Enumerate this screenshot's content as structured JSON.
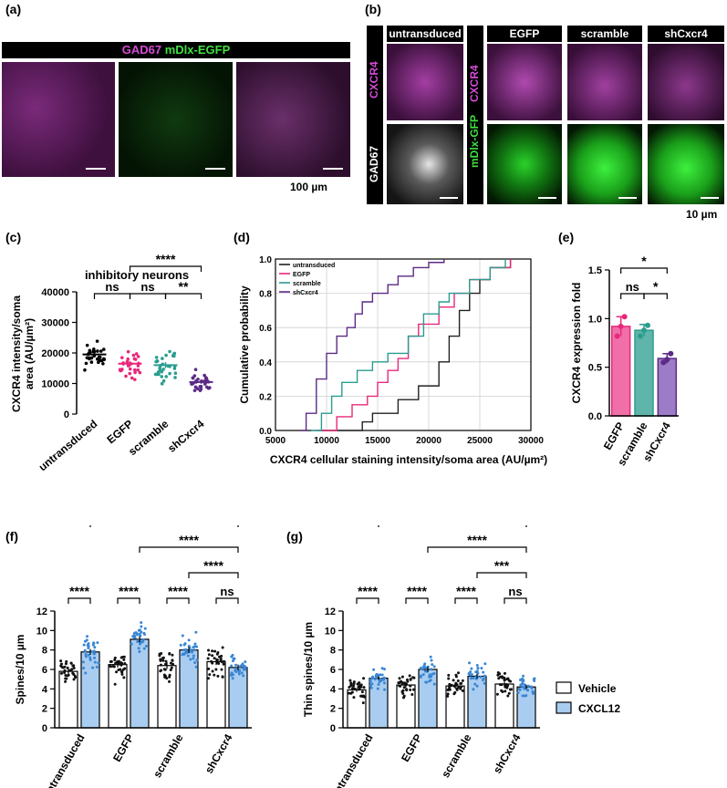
{
  "panels": {
    "a": {
      "label": "(a)",
      "header": {
        "marker": "GAD67",
        "reporter": "mDlx-EGFP"
      },
      "scale": "100 µm",
      "colors": {
        "magenta": "#b63bb6",
        "green": "#22c522"
      }
    },
    "b": {
      "label": "(b)",
      "columns": [
        "untransduced",
        "EGFP",
        "scramble",
        "shCxcr4"
      ],
      "left_rows": {
        "top": "CXCR4",
        "bottom": "GAD67"
      },
      "right_rows": {
        "top": "CXCR4",
        "bottom": "mDlx-GFP"
      },
      "scale": "10 µm"
    },
    "c": {
      "label": "(c)",
      "title": "inhibitory neurons"
    },
    "d": {
      "label": "(d)"
    },
    "e": {
      "label": "(e)"
    },
    "f": {
      "label": "(f)"
    },
    "g": {
      "label": "(g)"
    }
  },
  "chart_data": [
    {
      "id": "c",
      "type": "scatter",
      "title": "inhibitory neurons",
      "ylabel": "CXCR4 intensity/soma area (AU/µm²)",
      "ylabel_lines": [
        "CXCR4 intensity/soma",
        "area (AU/µm²)"
      ],
      "ylim": [
        0,
        40000
      ],
      "yticks": [
        "0",
        "10000",
        "20000",
        "30000",
        "40000"
      ],
      "categories": [
        "untransduced",
        "EGFP",
        "scramble",
        "shCxcr4"
      ],
      "colors": [
        "#000000",
        "#e8287a",
        "#2a9d8f",
        "#5b2a86"
      ],
      "means": [
        19500,
        16500,
        16000,
        10500
      ],
      "sem": [
        900,
        900,
        1000,
        600
      ],
      "n_points": [
        30,
        30,
        34,
        32
      ],
      "spread": [
        4200,
        4800,
        5400,
        3400
      ],
      "annotations": [
        {
          "from": 0,
          "to": 1,
          "text": "ns",
          "level": 1
        },
        {
          "from": 1,
          "to": 2,
          "text": "ns",
          "level": 1
        },
        {
          "from": 2,
          "to": 3,
          "text": "**",
          "level": 1
        },
        {
          "from": 1,
          "to": 3,
          "text": "****",
          "level": 2
        }
      ]
    },
    {
      "id": "d",
      "type": "line",
      "xlabel": "CXCR4 cellular staining intensity/soma area (AU/µm²)",
      "ylabel": "Cumulative probability",
      "xlim": [
        5000,
        30000
      ],
      "ylim": [
        0,
        1.0
      ],
      "xticks": [
        "5000",
        "10000",
        "15000",
        "20000",
        "25000",
        "30000"
      ],
      "yticks": [
        "0.0",
        "0.2",
        "0.4",
        "0.6",
        "0.8",
        "1.0"
      ],
      "grid": true,
      "legend": "top-left",
      "series": [
        {
          "name": "untransduced",
          "color": "#222222",
          "x": [
            9500,
            13500,
            14500,
            17000,
            19000,
            21000,
            22000,
            23000,
            24000,
            25000,
            26000,
            28000
          ],
          "y": [
            0.0,
            0.05,
            0.1,
            0.18,
            0.26,
            0.4,
            0.55,
            0.7,
            0.8,
            0.88,
            0.95,
            1.0
          ]
        },
        {
          "name": "EGFP",
          "color": "#e8287a",
          "x": [
            9000,
            11000,
            12500,
            14000,
            15000,
            16000,
            17000,
            18000,
            19000,
            21000,
            22500,
            24000,
            26000,
            28000
          ],
          "y": [
            0.0,
            0.08,
            0.15,
            0.2,
            0.28,
            0.35,
            0.42,
            0.55,
            0.62,
            0.72,
            0.8,
            0.88,
            0.95,
            1.0
          ]
        },
        {
          "name": "scramble",
          "color": "#2a9d8f",
          "x": [
            8500,
            9500,
            10500,
            11500,
            13000,
            14500,
            16000,
            18000,
            19500,
            21000,
            22000,
            24000,
            26000,
            27500
          ],
          "y": [
            0.0,
            0.1,
            0.2,
            0.28,
            0.35,
            0.4,
            0.45,
            0.55,
            0.68,
            0.75,
            0.8,
            0.88,
            0.95,
            1.0
          ]
        },
        {
          "name": "shCxcr4",
          "color": "#5b2a86",
          "x": [
            7500,
            8000,
            9000,
            10000,
            11000,
            12000,
            12800,
            13500,
            14500,
            16000,
            17000,
            18500,
            20000,
            21500
          ],
          "y": [
            0.0,
            0.1,
            0.3,
            0.45,
            0.55,
            0.6,
            0.68,
            0.75,
            0.8,
            0.85,
            0.9,
            0.95,
            0.98,
            1.0
          ]
        }
      ]
    },
    {
      "id": "e",
      "type": "bar",
      "ylabel": "CXCR4 expression fold",
      "ylim": [
        0,
        1.5
      ],
      "yticks": [
        "0.0",
        "0.5",
        "1.0",
        "1.5"
      ],
      "categories": [
        "EGFP",
        "scramble",
        "shCxcr4"
      ],
      "values": [
        0.92,
        0.88,
        0.59
      ],
      "errors": [
        0.1,
        0.06,
        0.05
      ],
      "points": [
        [
          0.82,
          0.92,
          1.02
        ],
        [
          0.82,
          0.88,
          0.93
        ],
        [
          0.55,
          0.58,
          0.64
        ]
      ],
      "colors": [
        "#f06fa8",
        "#5fb5a9",
        "#9c7cc6"
      ],
      "edge_colors": [
        "#e8287a",
        "#2a9d8f",
        "#5b2a86"
      ],
      "annotations": [
        {
          "from": 0,
          "to": 1,
          "text": "ns",
          "level": 1
        },
        {
          "from": 1,
          "to": 2,
          "text": "*",
          "level": 1
        },
        {
          "from": 0,
          "to": 2,
          "text": "*",
          "level": 2
        }
      ]
    },
    {
      "id": "f",
      "type": "bar",
      "ylabel": "Spines/10 µm",
      "ylim": [
        0,
        12
      ],
      "yticks": [
        "0",
        "2",
        "4",
        "6",
        "8",
        "10",
        "12"
      ],
      "categories": [
        "untransduced",
        "EGFP",
        "scramble",
        "shCxcr4"
      ],
      "series": [
        {
          "name": "Vehicle",
          "color": "#ffffff",
          "dots": "#111111",
          "values": [
            5.8,
            6.5,
            6.4,
            6.8
          ],
          "sem": [
            0.25,
            0.3,
            0.35,
            0.35
          ],
          "spread": [
            1.3,
            1.4,
            1.9,
            1.8
          ]
        },
        {
          "name": "CXCL12",
          "color": "#a9cdf0",
          "dots": "#3a86d4",
          "values": [
            7.8,
            9.1,
            8.0,
            6.2
          ],
          "sem": [
            0.3,
            0.3,
            0.3,
            0.3
          ],
          "spread": [
            1.6,
            1.5,
            1.6,
            1.4
          ]
        }
      ],
      "annotations": [
        {
          "from": 0,
          "to": 1,
          "text": "****",
          "kind": "pair",
          "cat": 0
        },
        {
          "from": 0,
          "to": 1,
          "text": "****",
          "kind": "pair",
          "cat": 1
        },
        {
          "from": 0,
          "to": 1,
          "text": "****",
          "kind": "pair",
          "cat": 2
        },
        {
          "from": 0,
          "to": 1,
          "text": "ns",
          "kind": "pair",
          "cat": 3
        },
        {
          "from": 2,
          "to": 3,
          "text": "****",
          "kind": "between",
          "level": 1
        },
        {
          "from": 1,
          "to": 3,
          "text": "****",
          "kind": "between",
          "level": 2
        },
        {
          "from": 0,
          "to": 3,
          "text": "****",
          "kind": "between",
          "level": 3
        }
      ]
    },
    {
      "id": "g",
      "type": "bar",
      "ylabel": "Thin spines/10 µm",
      "ylim": [
        0,
        12
      ],
      "yticks": [
        "0",
        "2",
        "4",
        "6",
        "8",
        "10",
        "12"
      ],
      "categories": [
        "untransduced",
        "EGFP",
        "scramble",
        "shCxcr4"
      ],
      "legend": "right",
      "series": [
        {
          "name": "Vehicle",
          "color": "#ffffff",
          "dots": "#111111",
          "values": [
            3.9,
            4.4,
            4.3,
            4.5
          ],
          "sem": [
            0.2,
            0.25,
            0.25,
            0.25
          ],
          "spread": [
            1.1,
            1.3,
            1.4,
            1.3
          ]
        },
        {
          "name": "CXCL12",
          "color": "#a9cdf0",
          "dots": "#3a86d4",
          "values": [
            5.1,
            6.0,
            5.3,
            4.2
          ],
          "sem": [
            0.2,
            0.25,
            0.25,
            0.2
          ],
          "spread": [
            1.0,
            1.4,
            1.3,
            1.1
          ]
        }
      ],
      "annotations": [
        {
          "from": 0,
          "to": 1,
          "text": "****",
          "kind": "pair",
          "cat": 0
        },
        {
          "from": 0,
          "to": 1,
          "text": "****",
          "kind": "pair",
          "cat": 1
        },
        {
          "from": 0,
          "to": 1,
          "text": "****",
          "kind": "pair",
          "cat": 2
        },
        {
          "from": 0,
          "to": 1,
          "text": "ns",
          "kind": "pair",
          "cat": 3
        },
        {
          "from": 2,
          "to": 3,
          "text": "***",
          "kind": "between",
          "level": 1
        },
        {
          "from": 1,
          "to": 3,
          "text": "****",
          "kind": "between",
          "level": 2
        },
        {
          "from": 0,
          "to": 3,
          "text": "**",
          "kind": "between",
          "level": 3
        }
      ]
    }
  ]
}
